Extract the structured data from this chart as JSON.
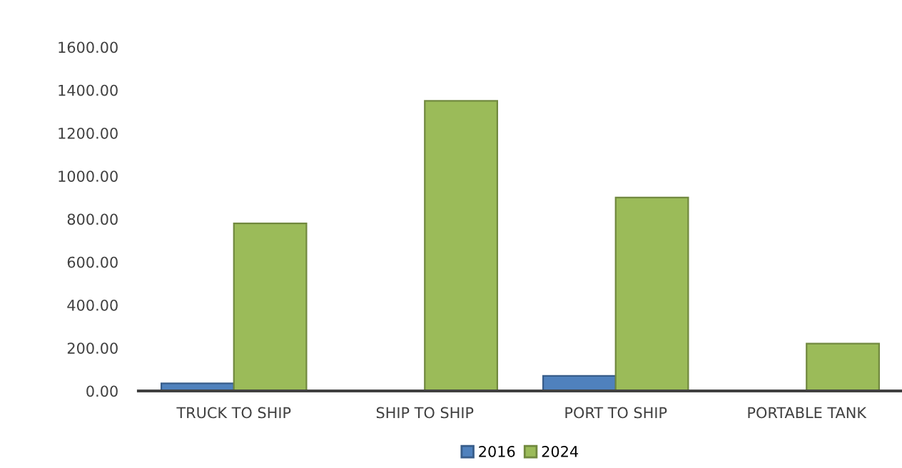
{
  "chart_data": {
    "type": "bar",
    "categories": [
      "TRUCK TO SHIP",
      "SHIP TO SHIP",
      "PORT TO SHIP",
      "PORTABLE TANK"
    ],
    "series": [
      {
        "name": "2016",
        "color": "#4f81bd",
        "values": [
          35,
          null,
          70,
          null
        ]
      },
      {
        "name": "2024",
        "color": "#9bbb59",
        "values": [
          780,
          1350,
          900,
          220
        ]
      }
    ],
    "ylim": [
      0,
      1600
    ],
    "yticks": [
      {
        "value": 0,
        "label": "0.00"
      },
      {
        "value": 200,
        "label": "200.00"
      },
      {
        "value": 400,
        "label": "400.00"
      },
      {
        "value": 600,
        "label": "600.00"
      },
      {
        "value": 800,
        "label": "800.00"
      },
      {
        "value": 1000,
        "label": "1000.00"
      },
      {
        "value": 1200,
        "label": "1200.00"
      },
      {
        "value": 1400,
        "label": "1400.00"
      },
      {
        "value": 1600,
        "label": "1600.00"
      }
    ],
    "grid": false,
    "legend": "bottom"
  }
}
